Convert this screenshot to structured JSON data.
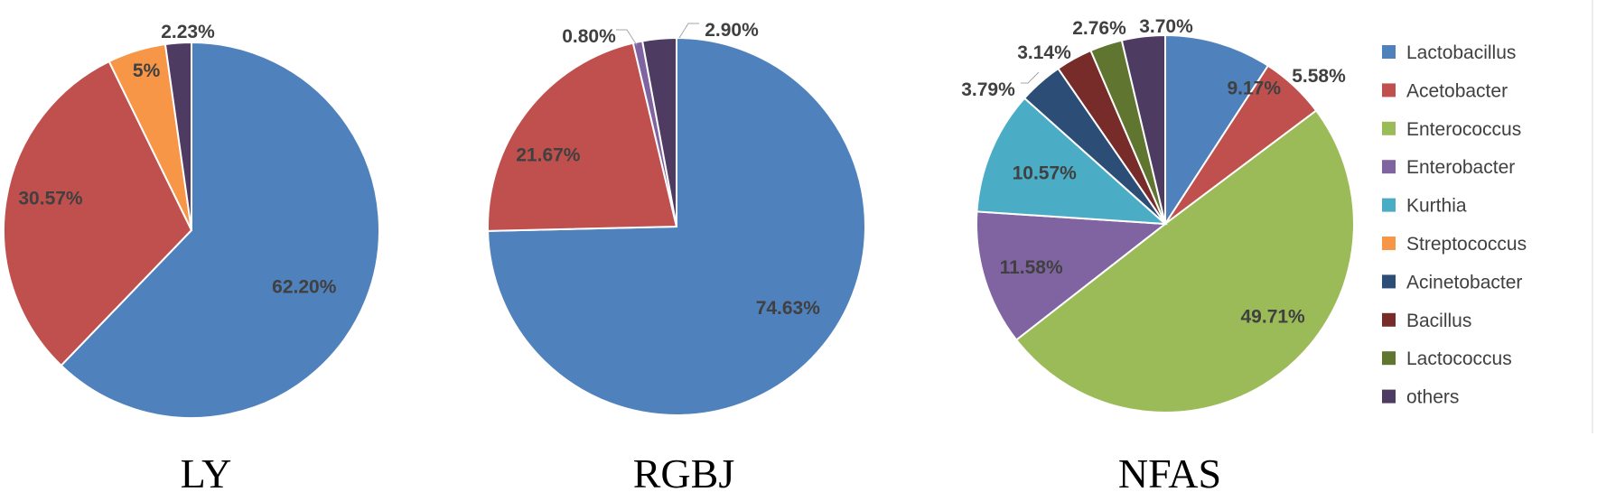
{
  "colors": {
    "Lactobacillus": "#4f81bd",
    "Acetobacter": "#c0504d",
    "Enterococcus": "#9bbb59",
    "Enterobacter": "#8064a2",
    "Kurthia": "#4bacc6",
    "Streptococcus": "#f79646",
    "Acinetobacter": "#2c4d75",
    "Bacillus": "#772c2a",
    "Lactococcus": "#5f7530",
    "others": "#4e3b62"
  },
  "legend": {
    "entries": [
      "Lactobacillus",
      "Acetobacter",
      "Enterococcus",
      "Enterobacter",
      "Kurthia",
      "Streptococcus",
      "Acinetobacter",
      "Bacillus",
      "Lactococcus",
      "others"
    ]
  },
  "chart_data": [
    {
      "type": "pie",
      "title": "LY",
      "slices": [
        {
          "name": "Lactobacillus",
          "value": 62.2,
          "label": "62.20%"
        },
        {
          "name": "Acetobacter",
          "value": 30.57,
          "label": "30.57%"
        },
        {
          "name": "Streptococcus",
          "value": 5.0,
          "label": "5%"
        },
        {
          "name": "others",
          "value": 2.23,
          "label": "2.23%"
        }
      ]
    },
    {
      "type": "pie",
      "title": "RGBJ",
      "slices": [
        {
          "name": "Lactobacillus",
          "value": 74.63,
          "label": "74.63%"
        },
        {
          "name": "Acetobacter",
          "value": 21.67,
          "label": "21.67%"
        },
        {
          "name": "Enterobacter",
          "value": 0.8,
          "label": "0.80%"
        },
        {
          "name": "others",
          "value": 2.9,
          "label": "2.90%"
        }
      ]
    },
    {
      "type": "pie",
      "title": "NFAS",
      "slices": [
        {
          "name": "Lactobacillus",
          "value": 9.17,
          "label": "9.17%"
        },
        {
          "name": "Acetobacter",
          "value": 5.58,
          "label": "5.58%"
        },
        {
          "name": "Enterococcus",
          "value": 49.71,
          "label": "49.71%"
        },
        {
          "name": "Enterobacter",
          "value": 11.58,
          "label": "11.58%"
        },
        {
          "name": "Kurthia",
          "value": 10.57,
          "label": "10.57%"
        },
        {
          "name": "Acinetobacter",
          "value": 3.79,
          "label": "3.79%"
        },
        {
          "name": "Bacillus",
          "value": 3.14,
          "label": "3.14%"
        },
        {
          "name": "Lactococcus",
          "value": 2.76,
          "label": "2.76%"
        },
        {
          "name": "others",
          "value": 3.7,
          "label": "3.70%"
        }
      ]
    }
  ]
}
